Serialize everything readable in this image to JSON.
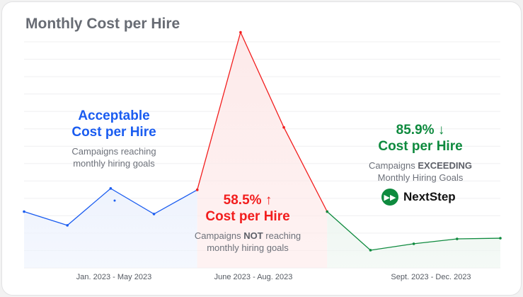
{
  "chart_data": {
    "type": "area",
    "title": "Monthly Cost per Hire",
    "xlabel": "",
    "ylabel": "",
    "grid": true,
    "ylim": [
      0,
      13
    ],
    "values": [
      3.24,
      2.45,
      4.57,
      3.1,
      4.49,
      13.55,
      8.08,
      3.24,
      1.02,
      1.39,
      1.67,
      1.71
    ],
    "segments": [
      {
        "label": "Jan. 2023 - May 2023",
        "start": 0,
        "end": 4,
        "color": "#1a5cf0",
        "fill": "#eef3fd"
      },
      {
        "label": "June 2023 - Aug. 2023",
        "start": 4,
        "end": 7,
        "color": "#f21d1d",
        "fill": "#fdeaea"
      },
      {
        "label": "Sept. 2023 - Dec. 2023",
        "start": 7,
        "end": 11,
        "color": "#0e8a3e",
        "fill": "#eef6f1"
      }
    ],
    "annotations": {
      "acceptable": {
        "line1": "Acceptable",
        "line2": "Cost per Hire",
        "sub1": "Campaigns reaching",
        "sub2": "monthly hiring goals",
        "color": "#1a5cf0"
      },
      "not": {
        "line1": "58.5% ↑",
        "line2": "Cost per Hire",
        "sub_a": "Campaigns ",
        "sub_b": "NOT",
        "sub_c": " reaching",
        "sub2": "monthly hiring goals",
        "color": "#f21d1d"
      },
      "exceeding": {
        "line1": "85.9% ↓",
        "line2": "Cost per Hire",
        "sub_a": "Campaigns ",
        "sub_b": "EXCEEDING",
        "sub2": "Monthly Hiring Goals",
        "color": "#0e8a3e"
      }
    }
  },
  "brand": {
    "name": "NextStep",
    "icon": "fast-forward-icon",
    "color": "#0e8a3e"
  }
}
